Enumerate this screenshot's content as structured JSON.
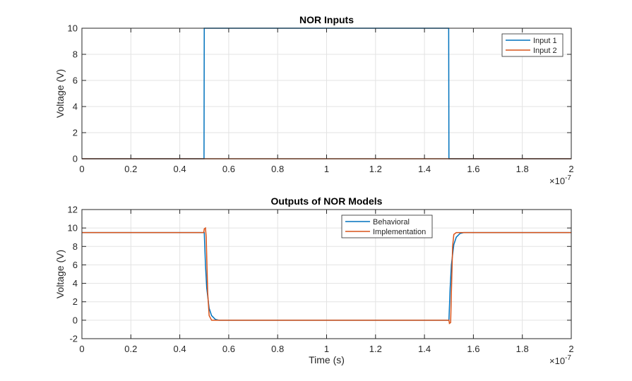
{
  "chart_data": [
    {
      "type": "line",
      "title": "NOR Inputs",
      "xlabel": "",
      "ylabel": "Voltage (V)",
      "xlim": [
        0,
        2e-07
      ],
      "ylim": [
        0,
        10
      ],
      "x_ticks": [
        0,
        2e-08,
        4e-08,
        6e-08,
        8e-08,
        1e-07,
        1.2e-07,
        1.4e-07,
        1.6e-07,
        1.8e-07,
        2e-07
      ],
      "x_tick_labels": [
        "0",
        "0.2",
        "0.4",
        "0.6",
        "0.8",
        "1",
        "1.2",
        "1.4",
        "1.6",
        "1.8",
        "2"
      ],
      "x_exponent_label": "×10",
      "x_exponent_power": "-7",
      "y_ticks": [
        0,
        2,
        4,
        6,
        8,
        10
      ],
      "y_tick_labels": [
        "0",
        "2",
        "4",
        "6",
        "8",
        "10"
      ],
      "grid": true,
      "legend_position": "top-right",
      "series": [
        {
          "name": "Input 1",
          "color": "#0072BD",
          "x": [
            0,
            4.99e-08,
            5e-08,
            1.499e-07,
            1.5e-07,
            2e-07
          ],
          "y": [
            0,
            0,
            10,
            10,
            0,
            0
          ]
        },
        {
          "name": "Input 2",
          "color": "#D95319",
          "x": [
            0,
            2e-07
          ],
          "y": [
            0,
            0
          ]
        }
      ]
    },
    {
      "type": "line",
      "title": "Outputs of NOR Models",
      "xlabel": "Time (s)",
      "ylabel": "Voltage (V)",
      "xlim": [
        0,
        2e-07
      ],
      "ylim": [
        -2,
        12
      ],
      "x_ticks": [
        0,
        2e-08,
        4e-08,
        6e-08,
        8e-08,
        1e-07,
        1.2e-07,
        1.4e-07,
        1.6e-07,
        1.8e-07,
        2e-07
      ],
      "x_tick_labels": [
        "0",
        "0.2",
        "0.4",
        "0.6",
        "0.8",
        "1",
        "1.2",
        "1.4",
        "1.6",
        "1.8",
        "2"
      ],
      "x_exponent_label": "×10",
      "x_exponent_power": "-7",
      "y_ticks": [
        -2,
        0,
        2,
        4,
        6,
        8,
        10,
        12
      ],
      "y_tick_labels": [
        "-2",
        "0",
        "2",
        "4",
        "6",
        "8",
        "10",
        "12"
      ],
      "grid": true,
      "legend_position": "top-center",
      "series": [
        {
          "name": "Behavioral",
          "color": "#0072BD",
          "x": [
            0,
            5e-08,
            5.05e-08,
            5.1e-08,
            5.2e-08,
            5.3e-08,
            5.45e-08,
            5.6e-08,
            1.5e-07,
            1.505e-07,
            1.51e-07,
            1.52e-07,
            1.53e-07,
            1.545e-07,
            1.56e-07,
            2e-07
          ],
          "y": [
            9.5,
            9.5,
            6.0,
            3.5,
            1.3,
            0.5,
            0.1,
            0,
            0,
            3.5,
            6.0,
            8.2,
            9.0,
            9.4,
            9.5,
            9.5
          ]
        },
        {
          "name": "Implementation",
          "color": "#D95319",
          "x": [
            0,
            4.98e-08,
            5e-08,
            5.05e-08,
            5.08e-08,
            5.14e-08,
            5.2e-08,
            5.3e-08,
            5.5e-08,
            1.5e-07,
            1.502e-07,
            1.507e-07,
            1.51e-07,
            1.515e-07,
            1.52e-07,
            1.53e-07,
            1.55e-07,
            2e-07
          ],
          "y": [
            9.5,
            9.5,
            9.9,
            10.0,
            9.0,
            3.0,
            0.5,
            0,
            0,
            0,
            -0.35,
            -0.25,
            3.0,
            8.0,
            9.3,
            9.5,
            9.5,
            9.5
          ]
        }
      ]
    }
  ]
}
